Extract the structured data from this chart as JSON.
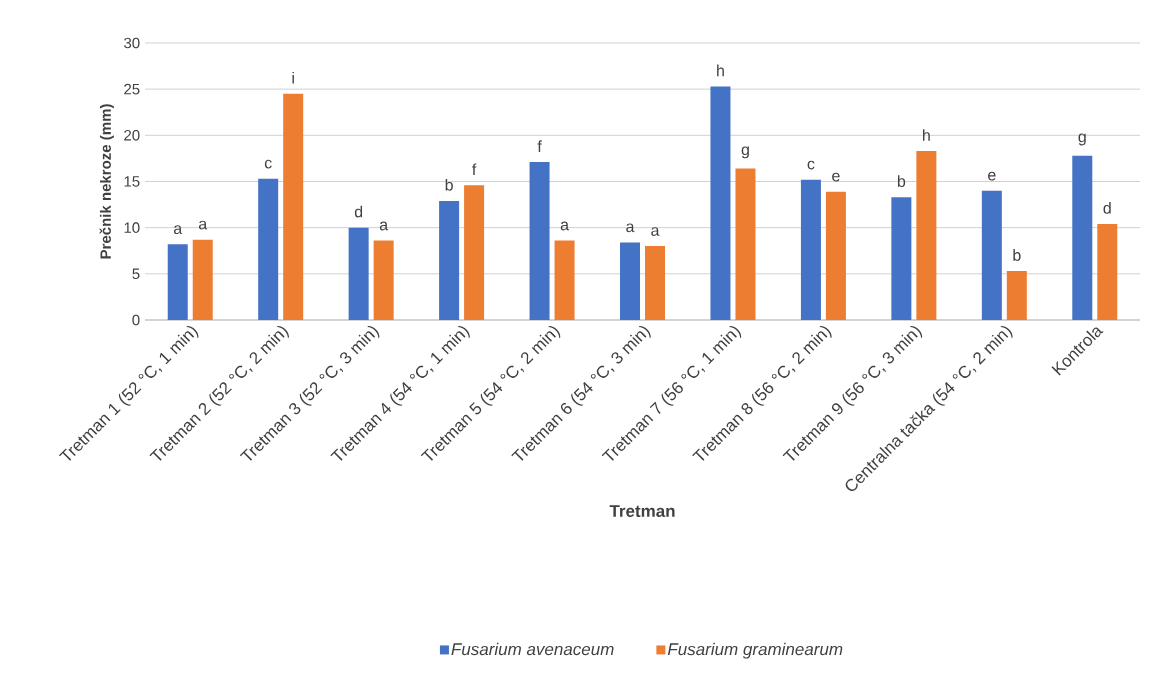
{
  "chart_data": {
    "type": "bar",
    "xlabel": "Tretman",
    "ylabel": "Prečnik nekroze (mm)",
    "categories": [
      "Tretman 1 (52 °C, 1 min)",
      "Tretman 2 (52 °C, 2 min)",
      "Tretman 3 (52 °C, 3 min)",
      "Tretman 4 (54 °C, 1 min)",
      "Tretman 5 (54 °C, 2 min)",
      "Tretman 6 (54 °C, 3 min)",
      "Tretman 7 (56 °C, 1 min)",
      "Tretman 8 (56 °C, 2 min)",
      "Tretman 9 (56 °C, 3 min)",
      "Centralna tačka (54 °C, 2 min)",
      "Kontrola"
    ],
    "series": [
      {
        "name": "Fusarium avenaceum",
        "color": "#4472c4",
        "values": [
          8.2,
          15.3,
          10.0,
          12.9,
          17.1,
          8.4,
          25.3,
          15.2,
          13.3,
          14.0,
          17.8
        ]
      },
      {
        "name": "Fusarium graminearum",
        "color": "#ed7d31",
        "values": [
          8.7,
          24.5,
          8.6,
          14.6,
          8.6,
          8.0,
          16.4,
          13.9,
          18.3,
          5.3,
          10.4
        ]
      }
    ],
    "value_labels": [
      [
        "a",
        "c",
        "d",
        "b",
        "f",
        "a",
        "h",
        "c",
        "b",
        "e",
        "g"
      ],
      [
        "a",
        "i",
        "a",
        "f",
        "a",
        "a",
        "g",
        "e",
        "h",
        "b",
        "d"
      ]
    ],
    "ylim": [
      0,
      30
    ],
    "yticks": [
      0,
      5,
      10,
      15,
      20,
      25,
      30
    ],
    "grid": "y",
    "legend": "bottom"
  }
}
